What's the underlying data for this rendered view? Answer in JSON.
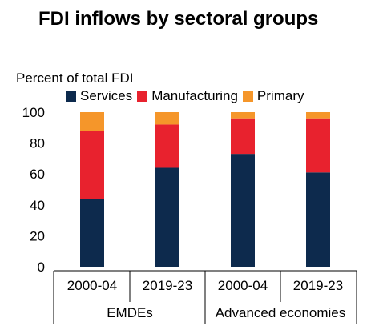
{
  "chart_data": {
    "type": "bar",
    "stacked": true,
    "title": "FDI inflows by sectoral groups",
    "ylabel": "Percent of total FDI",
    "ylim": [
      0,
      100
    ],
    "yticks": [
      0,
      20,
      40,
      60,
      80,
      100
    ],
    "categories": [
      "2000-04",
      "2019-23",
      "2000-04",
      "2019-23"
    ],
    "groups": [
      {
        "label": "EMDEs",
        "categories": [
          0,
          1
        ]
      },
      {
        "label": "Advanced economies",
        "categories": [
          2,
          3
        ]
      }
    ],
    "series": [
      {
        "name": "Services",
        "color": "#0d2a4d",
        "values": [
          44,
          64,
          73,
          61
        ]
      },
      {
        "name": "Manufacturing",
        "color": "#e8222e",
        "values": [
          44,
          28,
          23,
          35
        ]
      },
      {
        "name": "Primary",
        "color": "#f5962a",
        "values": [
          12,
          8,
          4,
          4
        ]
      }
    ],
    "legend_position": "top",
    "grid": false
  }
}
